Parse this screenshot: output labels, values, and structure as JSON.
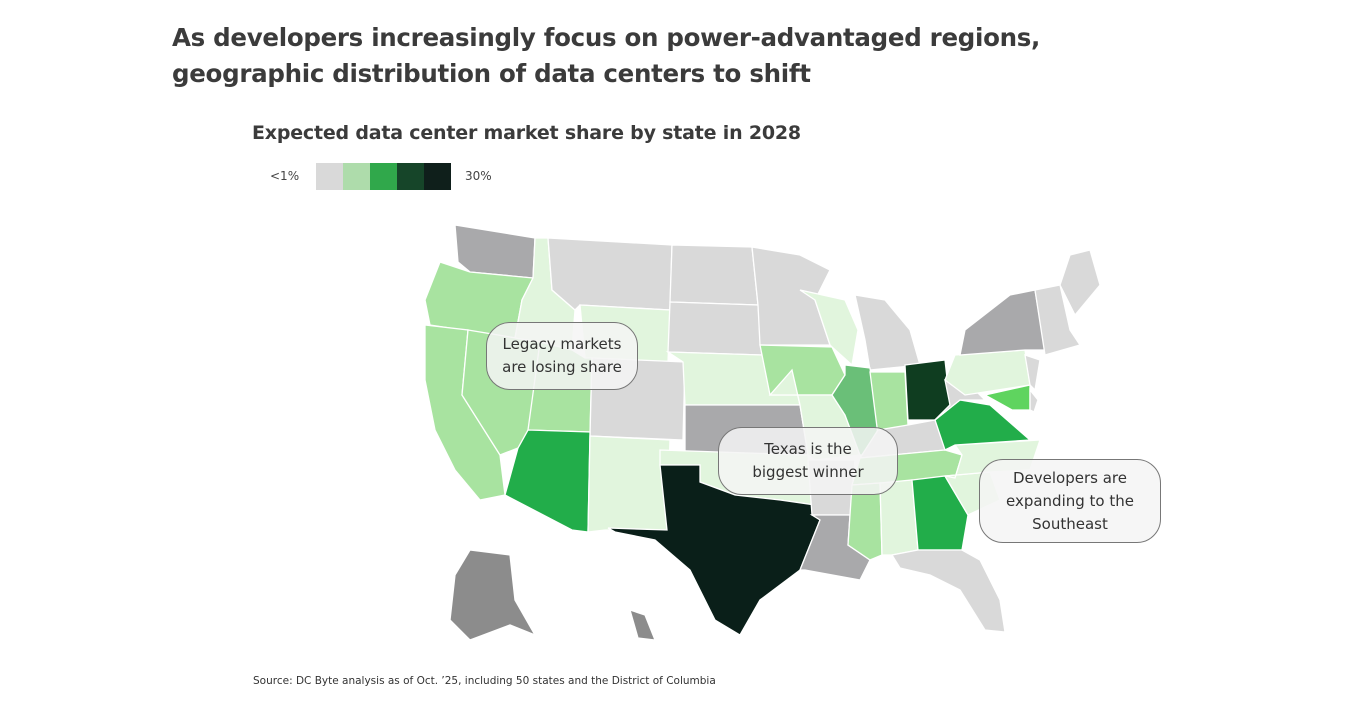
{
  "headline": "As developers increasingly focus on power-advantaged regions, geographic distribution of data centers to shift",
  "headline_lines": [
    "As developers increasingly focus on power-advantaged regions,",
    "geographic distribution of data centers to shift"
  ],
  "subtitle": "Expected data center market share by state in 2028",
  "legend": {
    "min_label": "<1%",
    "max_label": "30%",
    "colors": [
      "#d9d9d9",
      "#aedcab",
      "#30a84b",
      "#164529",
      "#0f1f1b"
    ]
  },
  "palette": {
    "light_gray": "#d9d9d9",
    "dark_gray": "#a9a9ab",
    "darker_gray": "#8c8c8c",
    "very_light_green": "#e1f5dd",
    "light_green": "#a8e3a0",
    "medium_green": "#6abf78",
    "green": "#22ad4a",
    "bright_green": "#5fd45f",
    "dark_green": "#0f3d20",
    "darkest": "#0a1f19"
  },
  "states": {
    "WA": "dark_gray",
    "OR": "light_green",
    "CA": "light_green",
    "NV": "light_green",
    "ID": "very_light_green",
    "MT": "light_gray",
    "WY": "very_light_green",
    "UT": "light_green",
    "CO": "light_gray",
    "AZ": "green",
    "NM": "very_light_green",
    "ND": "light_gray",
    "SD": "light_gray",
    "NE": "very_light_green",
    "KS": "dark_gray",
    "OK": "very_light_green",
    "TX": "darkest",
    "MN": "light_gray",
    "IA": "light_green",
    "MO": "very_light_green",
    "AR": "light_gray",
    "LA": "dark_gray",
    "WI": "very_light_green",
    "IL": "medium_green",
    "MI": "light_gray",
    "IN": "light_green",
    "OH": "dark_green",
    "KY": "light_gray",
    "TN": "light_green",
    "MS": "light_green",
    "AL": "very_light_green",
    "GA": "green",
    "FL": "light_gray",
    "SC": "very_light_green",
    "NC": "very_light_green",
    "VA": "green",
    "WV": "light_gray",
    "PA": "very_light_green",
    "NY": "dark_gray",
    "NJ": "light_gray",
    "MD": "bright_green",
    "DE": "light_gray",
    "NE_REGION": "light_gray",
    "ME": "light_gray",
    "AK": "darker_gray",
    "HI": "darker_gray"
  },
  "callouts": {
    "legacy": [
      "Legacy markets",
      "are losing share"
    ],
    "texas": [
      "Texas is the",
      "biggest winner"
    ],
    "southeast": [
      "Developers are",
      "expanding to the",
      "Southeast"
    ]
  },
  "source": "Source: DC Byte analysis as of Oct. ’25, including 50 states and the District of Columbia"
}
